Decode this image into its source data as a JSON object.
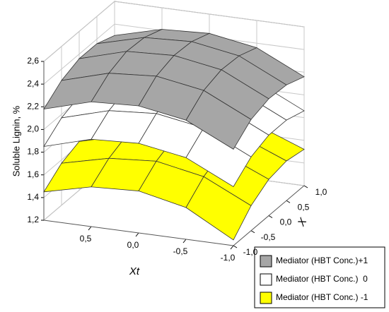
{
  "chart_data": {
    "type": "surface3d",
    "zlabel": "Soluble Lignin, %",
    "xlabel": "Xt",
    "ylabel": "X",
    "x": [
      1,
      0.5,
      0,
      -0.5,
      -1
    ],
    "y": [
      -1,
      -0.5,
      0,
      0.5,
      1
    ],
    "xlim": [
      -1,
      1
    ],
    "ylim": [
      -1,
      1
    ],
    "zlim": [
      1.2,
      2.6
    ],
    "xticks": [
      {
        "value": 0.5,
        "label": "0,5"
      },
      {
        "value": 0,
        "label": "0,0"
      },
      {
        "value": -0.5,
        "label": "-0,5"
      },
      {
        "value": -1,
        "label": "-1,0"
      }
    ],
    "yticks": [
      {
        "value": -1,
        "label": "-1,0"
      },
      {
        "value": -0.5,
        "label": "-0,5"
      },
      {
        "value": 0,
        "label": "0,0"
      },
      {
        "value": 0.5,
        "label": "0,5"
      },
      {
        "value": 1,
        "label": "1,0"
      }
    ],
    "zticks": [
      {
        "value": 1.2,
        "label": "1,2"
      },
      {
        "value": 1.4,
        "label": "1,4"
      },
      {
        "value": 1.6,
        "label": "1,6"
      },
      {
        "value": 1.8,
        "label": "1,8"
      },
      {
        "value": 2.0,
        "label": "2,0"
      },
      {
        "value": 2.2,
        "label": "2,2"
      },
      {
        "value": 2.4,
        "label": "2,4"
      },
      {
        "value": 2.6,
        "label": "2,6"
      }
    ],
    "series": [
      {
        "name": "Mediator (HBT Conc.) -1",
        "color": "#ffff00",
        "values": [
          [
            1.45,
            1.55,
            1.57,
            1.48,
            1.25
          ],
          [
            1.57,
            1.67,
            1.7,
            1.62,
            1.42
          ],
          [
            1.63,
            1.74,
            1.77,
            1.7,
            1.52
          ],
          [
            1.64,
            1.75,
            1.78,
            1.72,
            1.55
          ],
          [
            1.6,
            1.71,
            1.74,
            1.68,
            1.52
          ]
        ]
      },
      {
        "name": "Mediator (HBT Conc.)  0",
        "color": "#ffffff",
        "values": [
          [
            1.85,
            1.97,
            1.99,
            1.92,
            1.72
          ],
          [
            1.97,
            2.09,
            2.12,
            2.05,
            1.85
          ],
          [
            2.03,
            2.15,
            2.18,
            2.11,
            1.91
          ],
          [
            2.04,
            2.15,
            2.18,
            2.11,
            1.91
          ],
          [
            1.99,
            2.1,
            2.13,
            2.06,
            1.86
          ]
        ]
      },
      {
        "name": "Mediator (HBT Conc.)+1",
        "color": "#a6a6a6",
        "values": [
          [
            2.18,
            2.3,
            2.32,
            2.25,
            2.05
          ],
          [
            2.3,
            2.42,
            2.45,
            2.38,
            2.18
          ],
          [
            2.36,
            2.48,
            2.5,
            2.43,
            2.23
          ],
          [
            2.36,
            2.47,
            2.49,
            2.42,
            2.22
          ],
          [
            2.3,
            2.41,
            2.43,
            2.36,
            2.16
          ]
        ]
      }
    ]
  }
}
